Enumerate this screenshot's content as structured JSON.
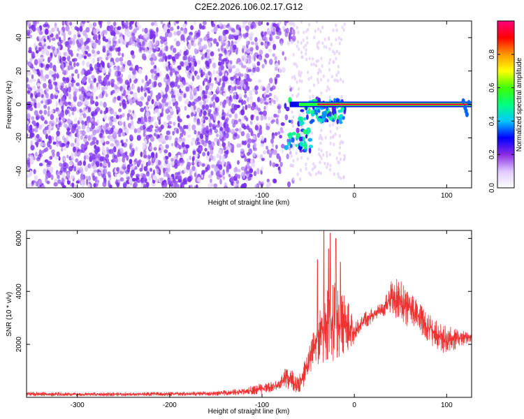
{
  "figure": {
    "title": "C2E2.2026.106.02.17.G12"
  },
  "chart_data": [
    {
      "type": "heatmap",
      "xlabel": "Height of straight line (km)",
      "ylabel": "Frequency (Hz)",
      "xlim": [
        -355,
        127
      ],
      "ylim": [
        -50,
        50
      ],
      "xticks": [
        -300,
        -200,
        -100,
        0,
        100
      ],
      "yticks": [
        -40,
        -20,
        0,
        20,
        40
      ],
      "colorbar": {
        "label": "Normalized spectral amplitude",
        "range": [
          0,
          1
        ],
        "ticks": [
          0.0,
          0.2,
          0.4,
          0.6,
          0.8
        ],
        "tick_labels": [
          "0.0",
          "0.2",
          "0.4",
          "0.6",
          "0.8"
        ],
        "colors": [
          "#ffffff",
          "#e0c8ff",
          "#8a2be2",
          "#0000ff",
          "#00c8ff",
          "#00ff80",
          "#40ff00",
          "#ffff00",
          "#ff9900",
          "#ff0000",
          "#ff0080"
        ]
      },
      "features": {
        "noise_region_x": [
          -355,
          -65
        ],
        "noise_amplitude_range": [
          0.0,
          0.25
        ],
        "carrier_frequency_hz": 0,
        "carrier_x": [
          -70,
          127
        ],
        "carrier_amplitude": 0.95,
        "scatter_region_x": [
          -75,
          -10
        ],
        "scatter_frequency_range": [
          -30,
          8
        ]
      }
    },
    {
      "type": "line",
      "xlabel": "Height of straight line (km)",
      "ylabel": "SNR (10 * v/v)",
      "xlim": [
        -355,
        127
      ],
      "ylim": [
        0,
        6300
      ],
      "xticks": [
        -300,
        -200,
        -100,
        0,
        100
      ],
      "yticks": [
        2000,
        4000,
        6000
      ],
      "color": "#ee3333",
      "envelope": {
        "x": [
          -355,
          -300,
          -250,
          -200,
          -150,
          -120,
          -100,
          -90,
          -80,
          -75,
          -70,
          -65,
          -60,
          -55,
          -50,
          -45,
          -40,
          -35,
          -30,
          -25,
          -20,
          -15,
          -10,
          -5,
          0,
          5,
          10,
          20,
          30,
          40,
          50,
          55,
          60,
          70,
          80,
          90,
          100,
          110,
          120,
          127
        ],
        "low": [
          40,
          40,
          40,
          50,
          60,
          80,
          120,
          200,
          300,
          400,
          200,
          150,
          100,
          400,
          800,
          1000,
          1200,
          1200,
          1000,
          1200,
          1400,
          1200,
          1400,
          1800,
          2000,
          2400,
          2600,
          2800,
          3000,
          3200,
          2800,
          2600,
          2800,
          2500,
          2000,
          1800,
          1600,
          1800,
          2000,
          2100
        ],
        "high": [
          220,
          180,
          200,
          200,
          240,
          350,
          550,
          600,
          700,
          1100,
          1200,
          900,
          800,
          1400,
          1800,
          2400,
          3400,
          3800,
          4500,
          4200,
          4400,
          3800,
          4000,
          3500,
          2800,
          3000,
          3200,
          3400,
          3600,
          4400,
          4600,
          4200,
          4000,
          3600,
          3200,
          2900,
          2700,
          2600,
          2500,
          2400
        ],
        "spikes": [
          [
            -33,
            6300
          ],
          [
            -26,
            6200
          ],
          [
            -20,
            6000
          ],
          [
            -40,
            5200
          ],
          [
            -28,
            5600
          ],
          [
            -15,
            5100
          ]
        ]
      }
    }
  ]
}
